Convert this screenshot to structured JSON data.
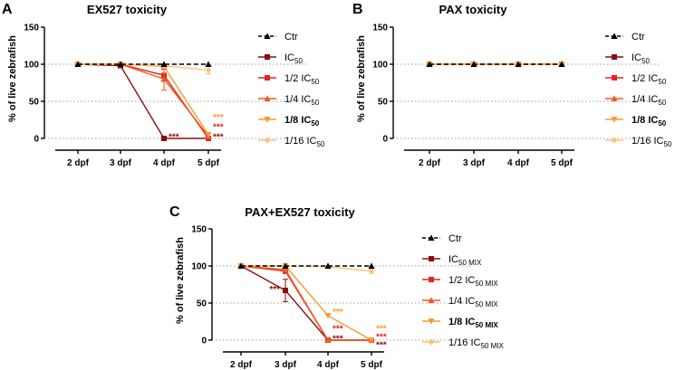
{
  "colors": {
    "ctr": "#000000",
    "ic50": "#8b0d0d",
    "half": "#e8251e",
    "quarter": "#f15a22",
    "eighth": "#f79b33",
    "sixteenth": "#f9c27a"
  },
  "chart_data": [
    {
      "panel": "A",
      "type": "line",
      "title": "EX527 toxicity",
      "xlabel": "",
      "ylabel": "% of live zebrafish",
      "categories": [
        "2 dpf",
        "3 dpf",
        "4 dpf",
        "5 dpf"
      ],
      "ylim": [
        0,
        150
      ],
      "yticks": [
        0,
        50,
        100,
        150
      ],
      "grid": "horizontal dotted",
      "legend_position": "right",
      "series": [
        {
          "key": "ctr",
          "name": "Ctr",
          "sub": "",
          "bold": false,
          "values": [
            100,
            100,
            100,
            100
          ],
          "errors": [
            0,
            0,
            0,
            0
          ]
        },
        {
          "key": "ic50",
          "name": "IC",
          "sub": "50",
          "bold": false,
          "values": [
            100,
            98,
            0,
            0
          ],
          "errors": [
            0,
            2,
            0,
            0
          ]
        },
        {
          "key": "half",
          "name": "1/2 IC",
          "sub": "50",
          "bold": false,
          "values": [
            100,
            100,
            85,
            0
          ],
          "errors": [
            0,
            0,
            8,
            0
          ]
        },
        {
          "key": "quarter",
          "name": "1/4 IC",
          "sub": "50",
          "bold": false,
          "values": [
            100,
            100,
            80,
            3
          ],
          "errors": [
            0,
            0,
            15,
            0
          ]
        },
        {
          "key": "eighth",
          "name": "1/8 IC",
          "sub": "50",
          "bold": true,
          "values": [
            100,
            100,
            97,
            5
          ],
          "errors": [
            0,
            0,
            3,
            0
          ]
        },
        {
          "key": "sixteenth",
          "name": "1/16 IC",
          "sub": "50",
          "bold": false,
          "values": [
            100,
            100,
            98,
            92
          ],
          "errors": [
            0,
            0,
            2,
            5
          ]
        }
      ],
      "annotations": [
        {
          "text": "***",
          "x_index": 2,
          "y": 2,
          "color_key": "ic50"
        },
        {
          "text": "***",
          "x_index": 3,
          "y": 28,
          "color_key": "eighth"
        },
        {
          "text": "***",
          "x_index": 3,
          "y": 15,
          "color_key": "half"
        },
        {
          "text": "***",
          "x_index": 3,
          "y": 2,
          "color_key": "ic50"
        }
      ]
    },
    {
      "panel": "B",
      "type": "line",
      "title": "PAX toxicity",
      "xlabel": "",
      "ylabel": "% of live zebrafish",
      "categories": [
        "2 dpf",
        "3 dpf",
        "4 dpf",
        "5 dpf"
      ],
      "ylim": [
        0,
        150
      ],
      "yticks": [
        0,
        50,
        100,
        150
      ],
      "grid": "horizontal dotted",
      "legend_position": "right",
      "series": [
        {
          "key": "ctr",
          "name": "Ctr",
          "sub": "",
          "bold": false,
          "values": [
            100,
            100,
            100,
            100
          ],
          "errors": [
            0,
            0,
            0,
            0
          ]
        },
        {
          "key": "ic50",
          "name": "IC",
          "sub": "50",
          "bold": false,
          "values": [
            100,
            100,
            100,
            100
          ],
          "errors": [
            0,
            0,
            0,
            0
          ]
        },
        {
          "key": "half",
          "name": "1/2 IC",
          "sub": "50",
          "bold": false,
          "values": [
            100,
            100,
            100,
            100
          ],
          "errors": [
            0,
            0,
            0,
            0
          ]
        },
        {
          "key": "quarter",
          "name": "1/4 IC",
          "sub": "50",
          "bold": false,
          "values": [
            100,
            100,
            100,
            100
          ],
          "errors": [
            0,
            0,
            0,
            0
          ]
        },
        {
          "key": "eighth",
          "name": "1/8 IC",
          "sub": "50",
          "bold": true,
          "values": [
            100,
            100,
            100,
            100
          ],
          "errors": [
            0,
            0,
            0,
            0
          ]
        },
        {
          "key": "sixteenth",
          "name": "1/16 IC",
          "sub": "50",
          "bold": false,
          "values": [
            100,
            100,
            100,
            100
          ],
          "errors": [
            0,
            0,
            0,
            0
          ]
        }
      ],
      "annotations": []
    },
    {
      "panel": "C",
      "type": "line",
      "title": "PAX+EX527 toxicity",
      "xlabel": "",
      "ylabel": "% of live zebrafish",
      "categories": [
        "2 dpf",
        "3 dpf",
        "4 dpf",
        "5 dpf"
      ],
      "ylim": [
        0,
        150
      ],
      "yticks": [
        0,
        50,
        100,
        150
      ],
      "grid": "horizontal dotted",
      "legend_position": "right",
      "series": [
        {
          "key": "ctr",
          "name": "Ctr",
          "sub": "",
          "bold": false,
          "values": [
            100,
            100,
            100,
            100
          ],
          "errors": [
            0,
            0,
            0,
            0
          ]
        },
        {
          "key": "ic50",
          "name": "IC",
          "sub": "50 MIX",
          "bold": false,
          "values": [
            100,
            67,
            0,
            0
          ],
          "errors": [
            0,
            15,
            0,
            0
          ]
        },
        {
          "key": "half",
          "name": "1/2 IC",
          "sub": "50 MIX",
          "bold": false,
          "values": [
            100,
            93,
            0,
            0
          ],
          "errors": [
            0,
            3,
            0,
            0
          ]
        },
        {
          "key": "quarter",
          "name": "1/4 IC",
          "sub": "50 MIX",
          "bold": false,
          "values": [
            100,
            95,
            0,
            0
          ],
          "errors": [
            0,
            2,
            0,
            0
          ]
        },
        {
          "key": "eighth",
          "name": "1/8 IC",
          "sub": "50 MIX",
          "bold": true,
          "values": [
            100,
            100,
            33,
            0
          ],
          "errors": [
            0,
            0,
            0,
            0
          ]
        },
        {
          "key": "sixteenth",
          "name": "1/16 IC",
          "sub": "50 MIX",
          "bold": false,
          "values": [
            100,
            100,
            99,
            93
          ],
          "errors": [
            0,
            0,
            0,
            3
          ]
        }
      ],
      "annotations": [
        {
          "text": "***",
          "x_index": 1,
          "y": 68,
          "color_key": "ic50",
          "side": "left"
        },
        {
          "text": "***",
          "x_index": 2,
          "y": 38,
          "color_key": "eighth"
        },
        {
          "text": "***",
          "x_index": 2,
          "y": 15,
          "color_key": "half"
        },
        {
          "text": "***",
          "x_index": 2,
          "y": 2,
          "color_key": "ic50"
        },
        {
          "text": "***",
          "x_index": 3,
          "y": 15,
          "color_key": "eighth"
        },
        {
          "text": "***",
          "x_index": 3,
          "y": 4,
          "color_key": "half"
        },
        {
          "text": "***",
          "x_index": 3,
          "y": -7,
          "color_key": "ic50"
        }
      ]
    }
  ]
}
